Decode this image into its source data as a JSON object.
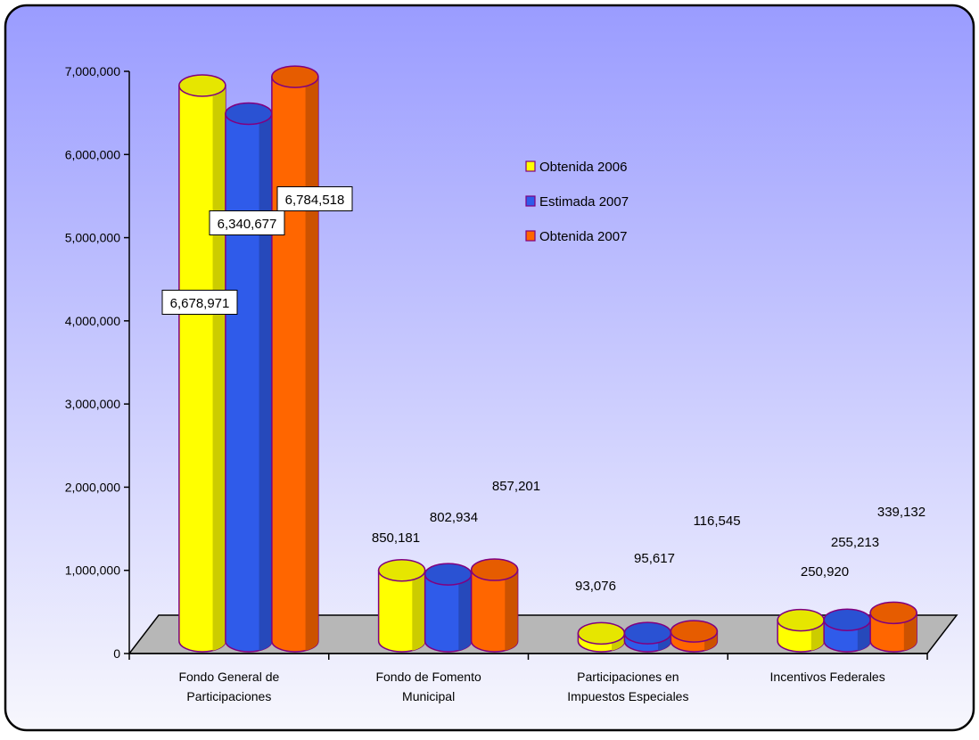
{
  "colors": {
    "background_top": "#9a9cff",
    "background_bottom": "#f7f7fd",
    "floor": "#b7b7b7",
    "outline": "#800080",
    "series": [
      "#ffff00",
      "#2f5bea",
      "#ff6600"
    ]
  },
  "chart_data": {
    "type": "bar",
    "style": "3d-cylinder",
    "categories": [
      "Fondo General de\nParticipaciones",
      "Fondo de Fomento\nMunicipal",
      "Participaciones en\nImpuestos Especiales",
      "Incentivos Federales"
    ],
    "series": [
      {
        "name": "Obtenida 2006",
        "values": [
          6678971,
          850181,
          93076,
          250920
        ]
      },
      {
        "name": "Estimada 2007",
        "values": [
          6340677,
          802934,
          95617,
          255213
        ]
      },
      {
        "name": "Obtenida 2007",
        "values": [
          6784518,
          857201,
          116545,
          339132
        ]
      }
    ],
    "data_labels": [
      [
        "6,678,971",
        "850,181",
        "93,076",
        "250,920"
      ],
      [
        "6,340,677",
        "802,934",
        "95,617",
        "255,213"
      ],
      [
        "6,784,518",
        "857,201",
        "116,545",
        "339,132"
      ]
    ],
    "ylim": [
      0,
      7000000
    ],
    "yticks": [
      0,
      1000000,
      2000000,
      3000000,
      4000000,
      5000000,
      6000000,
      7000000
    ],
    "ytick_labels": [
      "0",
      "1,000,000",
      "2,000,000",
      "3,000,000",
      "4,000,000",
      "5,000,000",
      "6,000,000",
      "7,000,000"
    ],
    "title": "",
    "xlabel": "",
    "ylabel": "",
    "grid": false,
    "legend_position": "upper-right of plot area"
  }
}
